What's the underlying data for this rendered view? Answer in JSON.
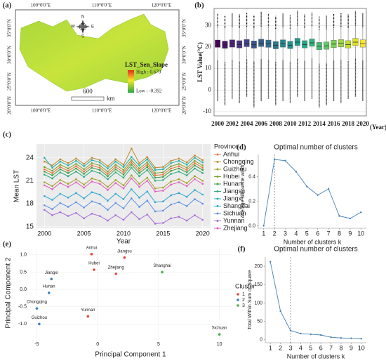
{
  "map": {
    "panel": "(a)",
    "lon_labels": [
      "100°0'0\"E",
      "110°0'0\"E",
      "120°0'0\"E"
    ],
    "lat_labels": [
      "35°0'0\"N",
      "30°0'0\"N",
      "25°0'0\"N",
      "20°0'0\"N"
    ],
    "legend_title": "LST_Sen_Slope",
    "legend_high": "High : 0.670",
    "legend_low": "Low : -0.392",
    "scale_value": "600",
    "scale_unit": "km",
    "compass": {
      "n": "N",
      "s": "S",
      "e": "E",
      "w": "W"
    }
  },
  "chart_data": [
    {
      "type": "box",
      "panel": "(b)",
      "y_label": "LST Value(°C)",
      "x_unit": "(Year)",
      "categories": [
        "2000",
        null,
        "2002",
        null,
        "2004",
        null,
        "2006",
        null,
        "2008",
        null,
        "2010",
        null,
        "2012",
        null,
        "2014",
        null,
        "2016",
        null,
        "2018",
        null,
        "2020"
      ],
      "colors": [
        "#440154",
        "#471365",
        "#482475",
        "#463480",
        "#414487",
        "#3b528b",
        "#355f8d",
        "#2f6c8e",
        "#2a788e",
        "#25848e",
        "#21918c",
        "#1e9c89",
        "#22a884",
        "#2fb47c",
        "#44bf70",
        "#5ec962",
        "#7ad151",
        "#9bd93c",
        "#bddf26",
        "#dfe318",
        "#fde725"
      ],
      "boxes": {
        "fliers_low": [
          -5,
          -7,
          -4,
          -6,
          -3,
          -8,
          -5,
          -4,
          -7,
          -5,
          -6,
          -3,
          -5,
          -4,
          -8,
          -7,
          -5,
          -6,
          -4,
          -3,
          -5
        ],
        "whislo": [
          14.0,
          13.3,
          14.1,
          13.6,
          14.3,
          13.5,
          14.4,
          14.0,
          13.0,
          14.1,
          13.2,
          14.8,
          13.6,
          14.6,
          12.4,
          12.7,
          13.9,
          14.3,
          13.6,
          14.8,
          14.0
        ],
        "q1": [
          19.9,
          19.4,
          20.0,
          19.6,
          20.2,
          19.5,
          20.3,
          19.9,
          19.2,
          20.0,
          19.3,
          20.7,
          19.6,
          20.4,
          18.8,
          19.0,
          19.8,
          20.1,
          19.6,
          20.7,
          20.0
        ],
        "med": [
          21.5,
          21.0,
          21.6,
          21.2,
          21.8,
          21.1,
          21.9,
          21.5,
          20.8,
          21.6,
          20.9,
          22.3,
          21.2,
          22.0,
          20.4,
          20.6,
          21.4,
          21.7,
          21.2,
          22.3,
          21.6
        ],
        "q3": [
          23.3,
          22.8,
          23.4,
          23.0,
          23.6,
          22.9,
          23.7,
          23.3,
          22.6,
          23.4,
          22.7,
          24.1,
          23.0,
          23.8,
          22.2,
          22.4,
          23.2,
          23.5,
          23.0,
          24.1,
          23.4
        ],
        "whishi": [
          29.2,
          28.8,
          29.3,
          28.9,
          29.5,
          28.8,
          29.6,
          29.2,
          28.5,
          29.3,
          28.6,
          30.0,
          28.9,
          29.7,
          28.1,
          28.3,
          29.1,
          29.4,
          28.9,
          30.0,
          29.3
        ],
        "fliers_high": [
          35.5,
          34.8,
          35.9,
          35.2,
          36.1,
          34.9,
          36.4,
          35.7,
          34.5,
          35.8,
          34.8,
          36.9,
          35.3,
          36.3,
          34.2,
          34.6,
          35.6,
          36.0,
          35.4,
          36.8,
          35.9
        ]
      },
      "ylim": [
        -12,
        38
      ],
      "yticks": [
        -10,
        0,
        10,
        20,
        30
      ],
      "grid": true
    },
    {
      "type": "line",
      "panel": "(c)",
      "x_label": "Year",
      "y_label": "Mean LST",
      "legend_title": "Province",
      "x": [
        2000,
        2001,
        2002,
        2003,
        2004,
        2005,
        2006,
        2007,
        2008,
        2009,
        2010,
        2011,
        2012,
        2013,
        2014,
        2015,
        2016,
        2017,
        2018,
        2019,
        2020
      ],
      "xlim": [
        1999,
        2021
      ],
      "xticks": [
        2000,
        2005,
        2010,
        2015,
        2020
      ],
      "ylim": [
        14.8,
        25.8
      ],
      "yticks": [
        15,
        18,
        21,
        24
      ],
      "grid": true,
      "series": [
        {
          "name": "Anhui",
          "color": "#e8743b",
          "values": [
            22.5,
            22.0,
            22.8,
            22.3,
            22.9,
            22.2,
            23.0,
            22.7,
            21.9,
            22.8,
            22.1,
            23.4,
            22.3,
            23.1,
            21.7,
            21.8,
            22.6,
            22.9,
            22.4,
            23.3,
            22.7
          ]
        },
        {
          "name": "Chongqing",
          "color": "#c08a2b",
          "values": [
            23.5,
            23.0,
            23.8,
            23.3,
            23.9,
            23.2,
            24.0,
            23.7,
            22.9,
            23.8,
            23.1,
            25.2,
            23.3,
            24.1,
            22.7,
            22.8,
            23.6,
            23.9,
            23.4,
            24.3,
            23.7
          ]
        },
        {
          "name": "Guizhou",
          "color": "#a3a022",
          "values": [
            20.8,
            20.3,
            21.1,
            20.6,
            21.2,
            20.5,
            21.3,
            21.0,
            20.2,
            21.1,
            20.4,
            21.7,
            20.6,
            21.4,
            20.0,
            20.1,
            20.9,
            21.2,
            20.7,
            21.6,
            21.0
          ]
        },
        {
          "name": "Hubei",
          "color": "#7fa22c",
          "values": [
            22.8,
            22.3,
            23.1,
            22.6,
            23.2,
            22.5,
            23.3,
            23.0,
            22.2,
            23.1,
            22.4,
            23.7,
            22.6,
            23.4,
            22.0,
            22.1,
            22.9,
            23.2,
            22.7,
            23.6,
            23.0
          ]
        },
        {
          "name": "Hunan",
          "color": "#3ca041",
          "values": [
            22.2,
            21.7,
            22.5,
            22.0,
            22.6,
            21.9,
            22.7,
            22.4,
            21.6,
            22.5,
            21.8,
            23.1,
            22.0,
            22.8,
            21.4,
            21.5,
            22.3,
            22.6,
            22.1,
            23.0,
            22.4
          ]
        },
        {
          "name": "Jiangsu",
          "color": "#2baa7a",
          "values": [
            21.8,
            21.3,
            22.1,
            21.6,
            22.2,
            21.5,
            22.3,
            22.0,
            21.2,
            22.1,
            21.4,
            22.7,
            21.6,
            22.4,
            21.0,
            21.1,
            21.9,
            22.2,
            21.7,
            22.6,
            22.0
          ]
        },
        {
          "name": "Jiangxi",
          "color": "#1fafa8",
          "values": [
            24.0,
            22.7,
            23.5,
            23.0,
            23.6,
            22.9,
            23.7,
            23.4,
            22.6,
            23.5,
            22.8,
            24.1,
            23.0,
            23.8,
            22.4,
            22.5,
            23.3,
            23.6,
            23.1,
            24.0,
            23.4
          ]
        },
        {
          "name": "Shanghai",
          "color": "#2ba6d6",
          "values": [
            19.0,
            18.5,
            19.3,
            18.8,
            19.4,
            18.7,
            19.5,
            19.2,
            18.4,
            19.3,
            18.6,
            19.9,
            18.8,
            19.6,
            18.2,
            18.3,
            19.1,
            19.4,
            18.9,
            19.8,
            19.2
          ]
        },
        {
          "name": "Sichuan",
          "color": "#5b8ee6",
          "values": [
            17.8,
            17.3,
            18.1,
            17.6,
            18.2,
            17.5,
            18.3,
            18.0,
            17.2,
            18.1,
            17.4,
            18.7,
            17.6,
            18.4,
            17.0,
            17.1,
            17.9,
            18.2,
            17.7,
            18.6,
            18.0
          ]
        },
        {
          "name": "Yunnan",
          "color": "#a56bd8",
          "values": [
            17.2,
            16.5,
            16.9,
            16.4,
            16.8,
            16.1,
            16.7,
            16.4,
            15.8,
            16.5,
            15.9,
            16.9,
            16.0,
            16.6,
            15.4,
            15.5,
            16.1,
            16.3,
            15.8,
            16.5,
            15.9
          ]
        },
        {
          "name": "Zhejiang",
          "color": "#e05cc0",
          "values": [
            20.4,
            19.9,
            20.7,
            20.2,
            20.8,
            20.1,
            20.9,
            20.6,
            19.8,
            20.7,
            20.0,
            21.3,
            20.2,
            21.0,
            19.6,
            19.7,
            20.5,
            20.8,
            20.3,
            21.2,
            20.6
          ]
        }
      ]
    },
    {
      "type": "elbow",
      "panel": "(d)",
      "title": "Optimal number of clusters",
      "x_label": "Number of clusters k",
      "y_label": "Average silhouette width",
      "x": [
        1,
        2,
        3,
        4,
        5,
        6,
        7,
        8,
        9,
        10
      ],
      "values": [
        0,
        0.54,
        0.53,
        0.44,
        0.32,
        0.25,
        0.3,
        0.08,
        0.06,
        0.11
      ],
      "xlim": [
        0.5,
        10.5
      ],
      "xticks": [
        1,
        2,
        3,
        4,
        5,
        6,
        7,
        8,
        9,
        10
      ],
      "ylim": [
        -0.02,
        0.58
      ],
      "yticks": [
        {
          "value": 0,
          "label": "0.0"
        },
        0.2,
        0.4
      ],
      "vline": 2,
      "color": "#4682b4"
    },
    {
      "type": "scatter",
      "panel": "(e)",
      "x_label": "Principal Component 1",
      "y_label": "Principal Component 2",
      "legend_title": "Cluster",
      "xlim": [
        -5.6,
        11
      ],
      "xticks": [
        -5,
        0,
        5,
        10
      ],
      "ylim": [
        -1.42,
        1.22
      ],
      "yticks": [
        {
          "value": -1,
          "label": "-1.0"
        },
        -0.5,
        {
          "value": 0,
          "label": "0.0"
        },
        0.5,
        {
          "value": 1,
          "label": "1.0"
        }
      ],
      "series": [
        {
          "name": "1",
          "color": "#e8483a",
          "labels": [
            "Anhui",
            "Jiangsu",
            "Hubei",
            "Zhejiang",
            "Yunnan"
          ],
          "x": [
            -0.5,
            2.2,
            -0.3,
            1.5,
            -0.8
          ],
          "y": [
            1.02,
            0.92,
            0.57,
            0.45,
            -0.78
          ]
        },
        {
          "name": "2",
          "color": "#3b7fc4",
          "labels": [
            "Jiangxi",
            "Hunan",
            "Chongqing",
            "Guizhou"
          ],
          "x": [
            -3.8,
            -4.0,
            -5.0,
            -4.8
          ],
          "y": [
            0.3,
            -0.1,
            -0.55,
            -1.0
          ]
        },
        {
          "name": "3",
          "color": "#4caf50",
          "labels": [
            "Shanghai",
            "Sichuan"
          ],
          "x": [
            5.3,
            10.0
          ],
          "y": [
            0.5,
            -1.3
          ]
        }
      ]
    },
    {
      "type": "elbow",
      "panel": "(f)",
      "title": "Optimal number of clusters",
      "x_label": "Number of clusters k",
      "y_label": "Total Within Sum of Square",
      "x": [
        1,
        2,
        3,
        4,
        5,
        6,
        7,
        8,
        9,
        10
      ],
      "values": [
        212,
        78,
        25,
        17,
        15,
        13,
        7,
        5,
        4,
        3
      ],
      "xlim": [
        0.5,
        10.5
      ],
      "xticks": [
        1,
        2,
        3,
        4,
        5,
        6,
        7,
        8,
        9,
        10
      ],
      "ylim": [
        -8,
        225
      ],
      "yticks": [
        0,
        50,
        100,
        150,
        200
      ],
      "vline": 3,
      "color": "#4682b4"
    }
  ]
}
